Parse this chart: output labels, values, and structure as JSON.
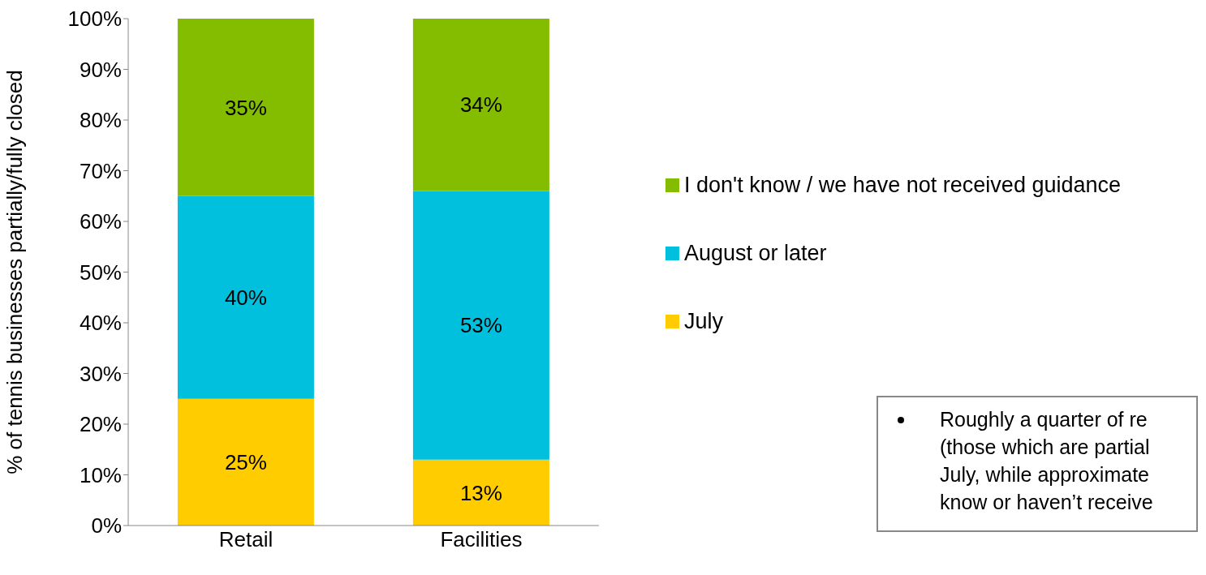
{
  "chart_data": {
    "type": "bar",
    "stacked": true,
    "categories": [
      "Retail",
      "Facilities"
    ],
    "ylabel": "% of tennis businesses partially/fully closed",
    "ylim": [
      0,
      100
    ],
    "yticks": [
      {
        "value": 0,
        "label": "0%"
      },
      {
        "value": 10,
        "label": "10%"
      },
      {
        "value": 20,
        "label": "20%"
      },
      {
        "value": 30,
        "label": "30%"
      },
      {
        "value": 40,
        "label": "40%"
      },
      {
        "value": 50,
        "label": "50%"
      },
      {
        "value": 60,
        "label": "60%"
      },
      {
        "value": 70,
        "label": "70%"
      },
      {
        "value": 80,
        "label": "80%"
      },
      {
        "value": 90,
        "label": "90%"
      },
      {
        "value": 100,
        "label": "100%"
      }
    ],
    "series": [
      {
        "name": "July",
        "color": "#ffcc00",
        "values": [
          25,
          13
        ],
        "value_labels": [
          "25%",
          "13%"
        ]
      },
      {
        "name": "August or later",
        "color": "#00c0de",
        "values": [
          40,
          53
        ],
        "value_labels": [
          "40%",
          "53%"
        ]
      },
      {
        "name": "I don't know / we have not received guidance",
        "color": "#84bd00",
        "values": [
          35,
          34
        ],
        "value_labels": [
          "35%",
          "34%"
        ]
      }
    ],
    "legend": "right",
    "grid": false,
    "annotations": [
      "Roughly a quarter of re\n(those which are partial\nJuly, while approximate\nknow or haven’t receive"
    ]
  }
}
